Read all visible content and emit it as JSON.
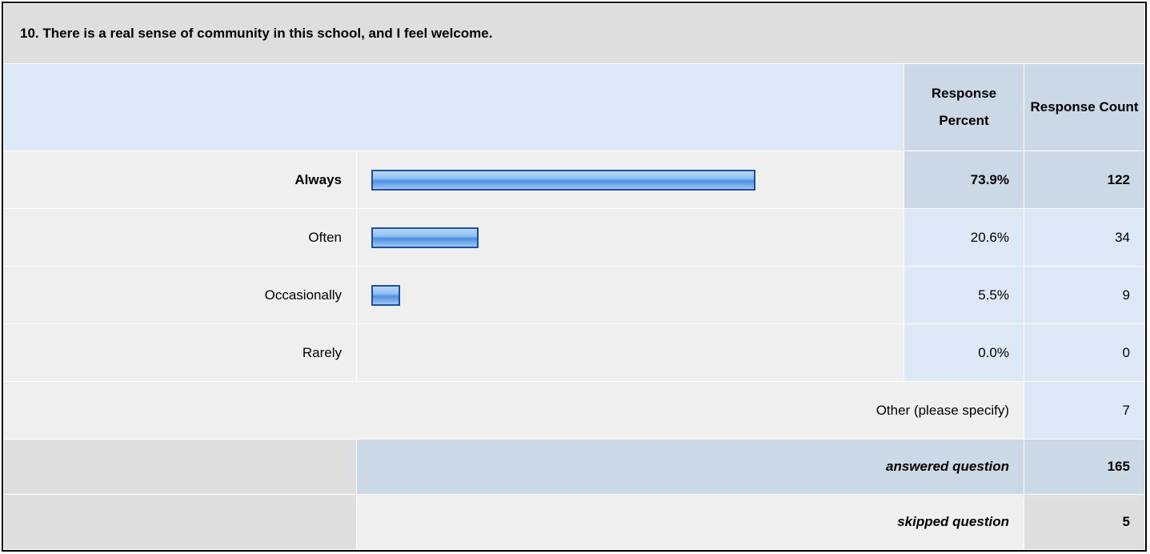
{
  "question": "10. There is a real sense of community in this school, and I feel welcome.",
  "columns": [
    "Response Percent",
    "Response Count"
  ],
  "rows": [
    {
      "label": "Always",
      "percent": 73.9,
      "percent_label": "73.9%",
      "count": 122,
      "bold": true
    },
    {
      "label": "Often",
      "percent": 20.6,
      "percent_label": "20.6%",
      "count": 34,
      "bold": false
    },
    {
      "label": "Occasionally",
      "percent": 5.5,
      "percent_label": "5.5%",
      "count": 9,
      "bold": false
    },
    {
      "label": "Rarely",
      "percent": 0.0,
      "percent_label": "0.0%",
      "count": 0,
      "bold": false
    }
  ],
  "other": {
    "label": "Other (please specify)",
    "count": 7
  },
  "answered": {
    "label": "answered question",
    "count": 165
  },
  "skipped": {
    "label": "skipped question",
    "count": 5
  }
}
